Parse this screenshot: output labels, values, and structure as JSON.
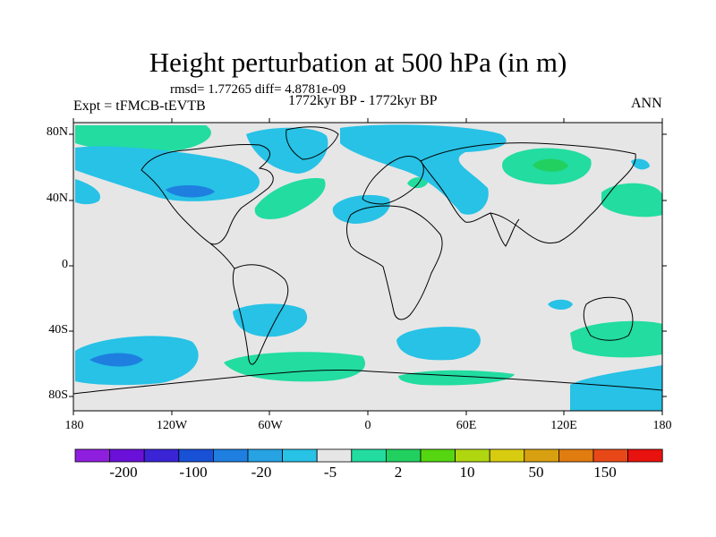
{
  "title": "Height perturbation at 500 hPa (in m)",
  "stats": "rmsd= 1.77265 diff= 4.8781e-09",
  "expt": "Expt = tFMCB-tEVTB",
  "period": "1772kyr BP - 1772kyr BP",
  "season": "ANN",
  "lat_ticks": [
    "80N",
    "40N",
    "0",
    "40S",
    "80S"
  ],
  "lon_ticks": [
    "180",
    "120W",
    "60W",
    "0",
    "60E",
    "120E",
    "180"
  ],
  "colorbar": {
    "labels": [
      "-200",
      "-100",
      "-20",
      "-5",
      "2",
      "10",
      "50",
      "150"
    ],
    "colors": [
      "#8f1fde",
      "#6a10d8",
      "#3a24d6",
      "#1850d6",
      "#1e7fe0",
      "#27a2e3",
      "#27c2e6",
      "#e6e6e6",
      "#22dca0",
      "#22d060",
      "#55d611",
      "#b0d610",
      "#d8cc10",
      "#d8a010",
      "#e07c10",
      "#e84818",
      "#e8120e"
    ]
  },
  "map_colors": {
    "background": "#e6e6e6",
    "negative_light": "#27c2e6",
    "negative_mid": "#27a2e3",
    "negative_dark": "#1e7fe0",
    "positive_light": "#22dca0",
    "positive_mid": "#22d060"
  }
}
